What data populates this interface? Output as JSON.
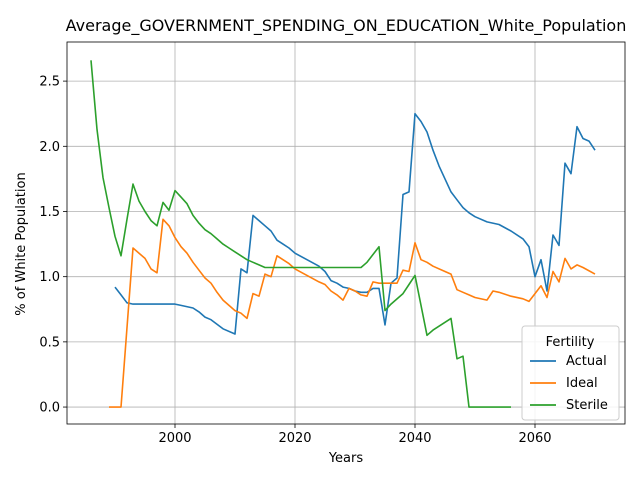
{
  "chart_data": {
    "type": "line",
    "title": "Average_GOVERNMENT_SPENDING_ON_EDUCATION_White_Population",
    "xlabel": "Years",
    "ylabel": "% of White Population",
    "xlim": [
      1982,
      2075
    ],
    "ylim": [
      -0.13,
      2.8
    ],
    "x_ticks": [
      2000,
      2020,
      2040,
      2060
    ],
    "y_ticks": [
      0.0,
      0.5,
      1.0,
      1.5,
      2.0,
      2.5
    ],
    "x_tick_labels": [
      "2000",
      "2020",
      "2040",
      "2060"
    ],
    "y_tick_labels": [
      "0.0",
      "0.5",
      "1.0",
      "1.5",
      "2.0",
      "2.5"
    ],
    "grid": true,
    "legend": {
      "title": "Fertility",
      "placement": "lower-right"
    },
    "series": [
      {
        "name": "Actual",
        "color": "#1f77b4",
        "points": [
          [
            1990,
            0.92
          ],
          [
            1991,
            0.86
          ],
          [
            1992,
            0.8
          ],
          [
            1993,
            0.79
          ],
          [
            1995,
            0.79
          ],
          [
            1997,
            0.79
          ],
          [
            2000,
            0.79
          ],
          [
            2001,
            0.78
          ],
          [
            2003,
            0.76
          ],
          [
            2004,
            0.73
          ],
          [
            2005,
            0.69
          ],
          [
            2006,
            0.67
          ],
          [
            2008,
            0.6
          ],
          [
            2010,
            0.56
          ],
          [
            2011,
            1.06
          ],
          [
            2012,
            1.03
          ],
          [
            2013,
            1.47
          ],
          [
            2014,
            1.43
          ],
          [
            2015,
            1.39
          ],
          [
            2016,
            1.35
          ],
          [
            2017,
            1.28
          ],
          [
            2018,
            1.25
          ],
          [
            2019,
            1.22
          ],
          [
            2020,
            1.18
          ],
          [
            2022,
            1.13
          ],
          [
            2024,
            1.08
          ],
          [
            2025,
            1.04
          ],
          [
            2026,
            0.97
          ],
          [
            2027,
            0.95
          ],
          [
            2028,
            0.92
          ],
          [
            2029,
            0.91
          ],
          [
            2030,
            0.89
          ],
          [
            2031,
            0.88
          ],
          [
            2032,
            0.88
          ],
          [
            2033,
            0.91
          ],
          [
            2034,
            0.91
          ],
          [
            2035,
            0.63
          ],
          [
            2036,
            0.95
          ],
          [
            2037,
            0.99
          ],
          [
            2038,
            1.63
          ],
          [
            2039,
            1.65
          ],
          [
            2040,
            2.25
          ],
          [
            2041,
            2.19
          ],
          [
            2042,
            2.11
          ],
          [
            2043,
            1.97
          ],
          [
            2044,
            1.85
          ],
          [
            2045,
            1.75
          ],
          [
            2046,
            1.65
          ],
          [
            2047,
            1.59
          ],
          [
            2048,
            1.53
          ],
          [
            2049,
            1.49
          ],
          [
            2050,
            1.46
          ],
          [
            2052,
            1.42
          ],
          [
            2054,
            1.4
          ],
          [
            2056,
            1.35
          ],
          [
            2058,
            1.29
          ],
          [
            2059,
            1.23
          ],
          [
            2060,
            1.0
          ],
          [
            2061,
            1.13
          ],
          [
            2062,
            0.89
          ],
          [
            2063,
            1.32
          ],
          [
            2064,
            1.24
          ],
          [
            2065,
            1.87
          ],
          [
            2066,
            1.79
          ],
          [
            2067,
            2.15
          ],
          [
            2068,
            2.06
          ],
          [
            2069,
            2.04
          ],
          [
            2070,
            1.97
          ]
        ]
      },
      {
        "name": "Ideal",
        "color": "#ff7f0e",
        "points": [
          [
            1989,
            0.0
          ],
          [
            1991,
            0.0
          ],
          [
            1993,
            1.22
          ],
          [
            1995,
            1.14
          ],
          [
            1996,
            1.06
          ],
          [
            1997,
            1.03
          ],
          [
            1998,
            1.44
          ],
          [
            1999,
            1.39
          ],
          [
            2000,
            1.3
          ],
          [
            2001,
            1.23
          ],
          [
            2002,
            1.18
          ],
          [
            2003,
            1.11
          ],
          [
            2004,
            1.05
          ],
          [
            2005,
            0.99
          ],
          [
            2006,
            0.95
          ],
          [
            2007,
            0.88
          ],
          [
            2008,
            0.82
          ],
          [
            2009,
            0.78
          ],
          [
            2010,
            0.74
          ],
          [
            2011,
            0.72
          ],
          [
            2012,
            0.68
          ],
          [
            2013,
            0.87
          ],
          [
            2014,
            0.85
          ],
          [
            2015,
            1.02
          ],
          [
            2016,
            1.0
          ],
          [
            2017,
            1.16
          ],
          [
            2018,
            1.13
          ],
          [
            2019,
            1.1
          ],
          [
            2020,
            1.06
          ],
          [
            2022,
            1.01
          ],
          [
            2024,
            0.96
          ],
          [
            2025,
            0.94
          ],
          [
            2026,
            0.89
          ],
          [
            2027,
            0.86
          ],
          [
            2028,
            0.82
          ],
          [
            2029,
            0.91
          ],
          [
            2030,
            0.89
          ],
          [
            2031,
            0.86
          ],
          [
            2032,
            0.85
          ],
          [
            2033,
            0.96
          ],
          [
            2034,
            0.95
          ],
          [
            2035,
            0.95
          ],
          [
            2037,
            0.95
          ],
          [
            2038,
            1.05
          ],
          [
            2039,
            1.04
          ],
          [
            2040,
            1.26
          ],
          [
            2041,
            1.13
          ],
          [
            2042,
            1.11
          ],
          [
            2043,
            1.08
          ],
          [
            2045,
            1.04
          ],
          [
            2046,
            1.02
          ],
          [
            2047,
            0.9
          ],
          [
            2048,
            0.88
          ],
          [
            2049,
            0.86
          ],
          [
            2050,
            0.84
          ],
          [
            2052,
            0.82
          ],
          [
            2053,
            0.89
          ],
          [
            2054,
            0.88
          ],
          [
            2056,
            0.85
          ],
          [
            2058,
            0.83
          ],
          [
            2059,
            0.81
          ],
          [
            2060,
            0.87
          ],
          [
            2061,
            0.93
          ],
          [
            2062,
            0.84
          ],
          [
            2063,
            1.04
          ],
          [
            2064,
            0.96
          ],
          [
            2065,
            1.14
          ],
          [
            2066,
            1.06
          ],
          [
            2067,
            1.09
          ],
          [
            2068,
            1.07
          ],
          [
            2070,
            1.02
          ]
        ]
      },
      {
        "name": "Sterile",
        "color": "#2ca02c",
        "points": [
          [
            1986,
            2.66
          ],
          [
            1987,
            2.13
          ],
          [
            1988,
            1.76
          ],
          [
            1989,
            1.53
          ],
          [
            1990,
            1.31
          ],
          [
            1991,
            1.16
          ],
          [
            1992,
            1.44
          ],
          [
            1993,
            1.71
          ],
          [
            1994,
            1.58
          ],
          [
            1995,
            1.5
          ],
          [
            1996,
            1.43
          ],
          [
            1997,
            1.39
          ],
          [
            1998,
            1.57
          ],
          [
            1999,
            1.51
          ],
          [
            2000,
            1.66
          ],
          [
            2001,
            1.61
          ],
          [
            2002,
            1.56
          ],
          [
            2003,
            1.47
          ],
          [
            2004,
            1.41
          ],
          [
            2005,
            1.36
          ],
          [
            2006,
            1.33
          ],
          [
            2007,
            1.29
          ],
          [
            2008,
            1.25
          ],
          [
            2009,
            1.22
          ],
          [
            2010,
            1.19
          ],
          [
            2011,
            1.16
          ],
          [
            2012,
            1.13
          ],
          [
            2013,
            1.11
          ],
          [
            2014,
            1.09
          ],
          [
            2015,
            1.07
          ],
          [
            2020,
            1.07
          ],
          [
            2025,
            1.07
          ],
          [
            2031,
            1.07
          ],
          [
            2032,
            1.11
          ],
          [
            2033,
            1.17
          ],
          [
            2034,
            1.23
          ],
          [
            2035,
            0.74
          ],
          [
            2036,
            0.79
          ],
          [
            2038,
            0.87
          ],
          [
            2039,
            0.94
          ],
          [
            2040,
            1.01
          ],
          [
            2042,
            0.55
          ],
          [
            2043,
            0.59
          ],
          [
            2046,
            0.68
          ],
          [
            2047,
            0.37
          ],
          [
            2048,
            0.39
          ],
          [
            2049,
            0.0
          ],
          [
            2052,
            0.0
          ],
          [
            2054,
            0.0
          ],
          [
            2056,
            0.0
          ]
        ]
      }
    ]
  }
}
